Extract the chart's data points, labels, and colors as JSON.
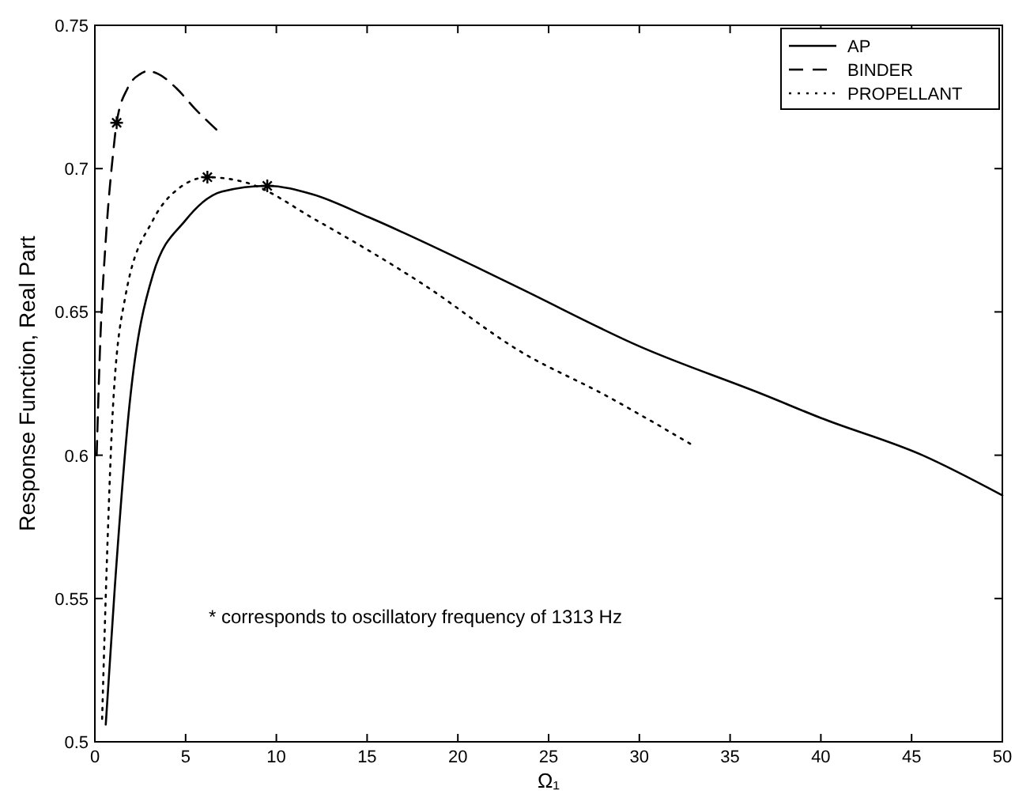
{
  "chart_data": {
    "type": "line",
    "xlabel": "Ω₁",
    "ylabel": "Response Function, Real Part",
    "xlim": [
      0,
      50
    ],
    "ylim": [
      0.5,
      0.75
    ],
    "xticks": [
      0,
      5,
      10,
      15,
      20,
      25,
      30,
      35,
      40,
      45,
      50
    ],
    "yticks": [
      0.5,
      0.55,
      0.6,
      0.65,
      0.7,
      0.75
    ],
    "grid": false,
    "legend": "top right",
    "annotations": [
      "* corresponds to oscillatory frequency of 1313 Hz"
    ],
    "series": [
      {
        "name": "AP",
        "color": "#000000",
        "line_style": "solid",
        "x": [
          0.6,
          1.1,
          1.9,
          3.2,
          5.0,
          7.0,
          9.5,
          12.0,
          15.1,
          20.9,
          23.5,
          30.0,
          36.9,
          40.0,
          45.6,
          50.0
        ],
        "values": [
          0.506,
          0.554,
          0.617,
          0.663,
          0.682,
          0.692,
          0.694,
          0.691,
          0.683,
          0.666,
          0.658,
          0.638,
          0.621,
          0.613,
          0.6,
          0.586
        ]
      },
      {
        "name": "BINDER",
        "color": "#000000",
        "line_style": "dashed",
        "x": [
          0.1,
          0.3,
          0.6,
          1.0,
          1.2,
          1.8,
          2.5,
          2.9,
          3.5,
          4.5,
          5.5,
          6.8
        ],
        "values": [
          0.6,
          0.64,
          0.675,
          0.705,
          0.716,
          0.728,
          0.733,
          0.734,
          0.733,
          0.728,
          0.721,
          0.713
        ]
      },
      {
        "name": "PROPELLANT",
        "color": "#000000",
        "line_style": "dotted",
        "x": [
          0.4,
          0.7,
          1.0,
          1.7,
          3.2,
          4.6,
          6.2,
          8.4,
          12.2,
          18.0,
          23.5,
          28.1,
          32.8
        ],
        "values": [
          0.508,
          0.57,
          0.617,
          0.656,
          0.682,
          0.693,
          0.697,
          0.695,
          0.682,
          0.66,
          0.636,
          0.621,
          0.604
        ]
      },
      {
        "type": "scatter",
        "color": "#000000",
        "marker": "cross",
        "x": [
          1.2,
          6.2,
          9.5
        ],
        "values": [
          0.716,
          0.697,
          0.694
        ]
      }
    ]
  }
}
